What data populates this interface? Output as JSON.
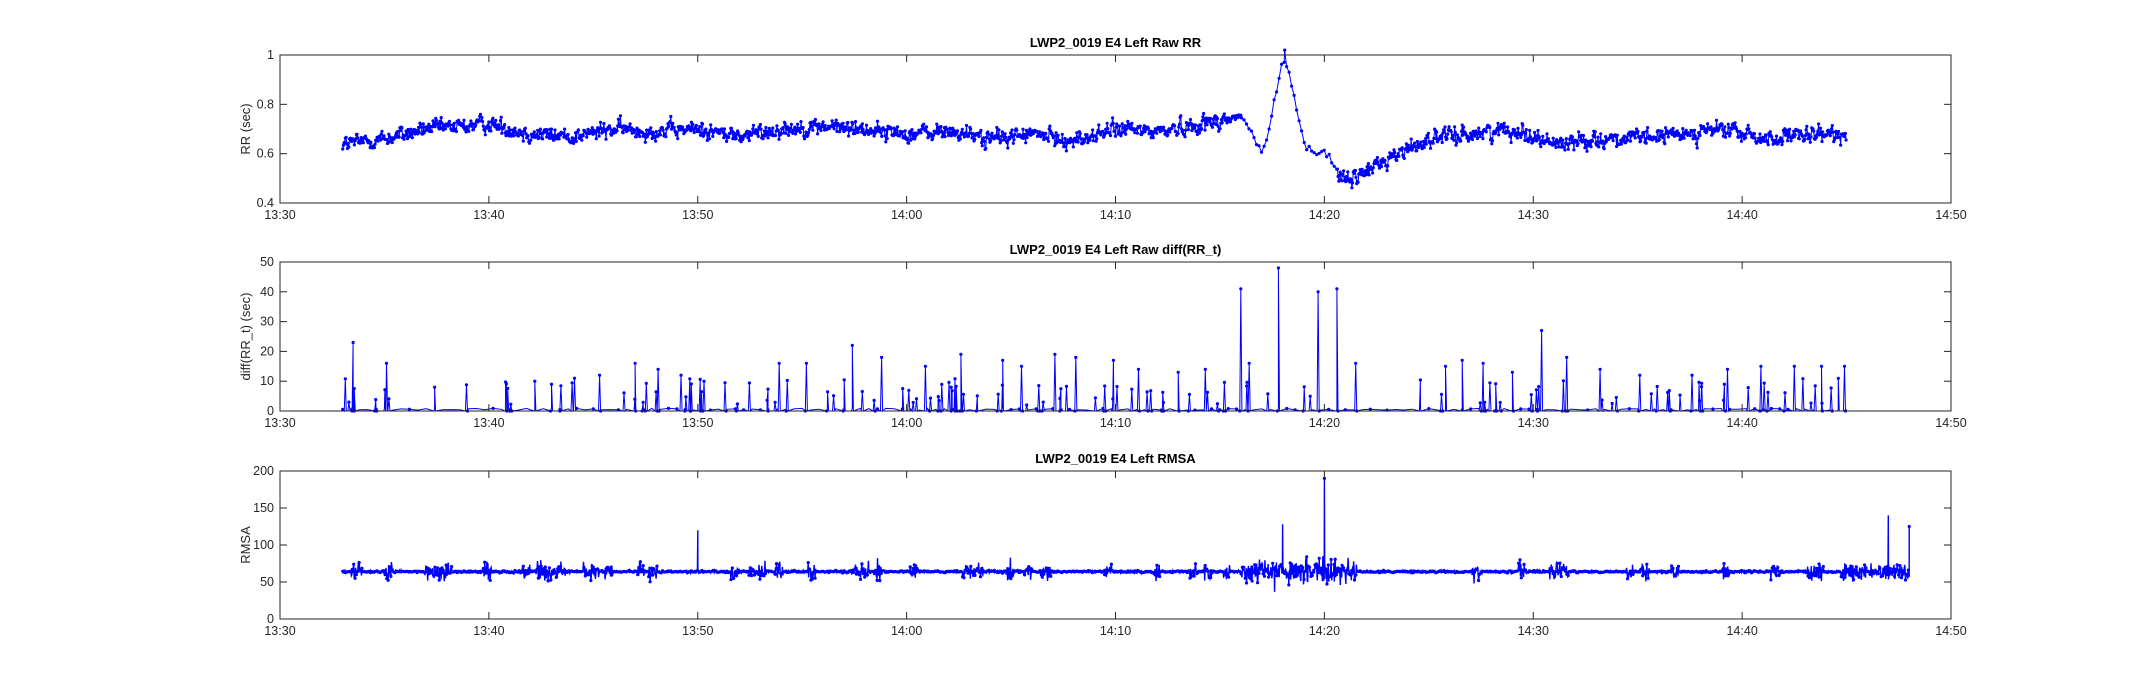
{
  "chart_data": [
    {
      "type": "line",
      "title": "LWP2_0019 E4 Left Raw RR",
      "ylabel": "RR (sec)",
      "xlabel": "",
      "x_ticks": [
        "13:30",
        "13:40",
        "13:50",
        "14:00",
        "14:10",
        "14:20",
        "14:30",
        "14:40",
        "14:50"
      ],
      "y_ticks": [
        "0.4",
        "0.6",
        "0.8",
        "1"
      ],
      "xlim": [
        "13:30",
        "14:50"
      ],
      "ylim": [
        0.4,
        1.0
      ],
      "grid": false,
      "marker": "dot",
      "color": "#0000ff",
      "series": [
        {
          "x": [
            "13:33",
            "13:35",
            "13:37",
            "13:40",
            "13:42",
            "13:44",
            "13:46",
            "13:48",
            "13:50",
            "13:52",
            "13:54",
            "13:56",
            "13:58",
            "14:00",
            "14:02",
            "14:04",
            "14:06",
            "14:08",
            "14:10",
            "14:12",
            "14:14",
            "14:16",
            "14:17",
            "14:18",
            "14:19",
            "14:20",
            "14:21",
            "14:23",
            "14:25",
            "14:27",
            "14:29",
            "14:31",
            "14:33",
            "14:35",
            "14:37",
            "14:39",
            "14:41",
            "14:43",
            "14:45"
          ],
          "values": [
            0.64,
            0.66,
            0.7,
            0.72,
            0.68,
            0.67,
            0.7,
            0.69,
            0.7,
            0.67,
            0.7,
            0.71,
            0.7,
            0.68,
            0.69,
            0.66,
            0.68,
            0.65,
            0.7,
            0.69,
            0.72,
            0.75,
            0.58,
            1.02,
            0.62,
            0.6,
            0.48,
            0.58,
            0.66,
            0.68,
            0.7,
            0.64,
            0.66,
            0.66,
            0.68,
            0.7,
            0.66,
            0.67,
            0.68
          ]
        }
      ]
    },
    {
      "type": "line",
      "title": "LWP2_0019 E4 Left Raw diff(RR_t)",
      "ylabel": "diff(RR_t) (sec)",
      "xlabel": "",
      "x_ticks": [
        "13:30",
        "13:40",
        "13:50",
        "14:00",
        "14:10",
        "14:20",
        "14:30",
        "14:40",
        "14:50"
      ],
      "y_ticks": [
        "0",
        "10",
        "20",
        "30",
        "40",
        "50"
      ],
      "xlim": [
        "13:30",
        "14:50"
      ],
      "ylim": [
        0,
        50
      ],
      "grid": false,
      "marker": "dot",
      "color": "#0000ff",
      "series": [
        {
          "x": [
            "13:33.3",
            "13:33.5",
            "13:35.1",
            "13:37.4",
            "13:42.2",
            "13:43.0",
            "13:44.1",
            "13:45.3",
            "13:47.0",
            "13:48.1",
            "13:49.2",
            "13:50.3",
            "13:53.9",
            "13:55.2",
            "13:57.4",
            "13:58.8",
            "14:00.9",
            "14:02.6",
            "14:04.6",
            "14:05.5",
            "14:07.1",
            "14:08.1",
            "14:09.9",
            "14:11.1",
            "14:13.0",
            "14:14.3",
            "14:16.0",
            "14:16.4",
            "14:17.8",
            "14:19.7",
            "14:20.6",
            "14:21.5",
            "14:25.8",
            "14:26.6",
            "14:27.6",
            "14:29.0",
            "14:30.4",
            "14:31.6",
            "14:33.2",
            "14:35.1",
            "14:37.6",
            "14:39.3",
            "14:40.9",
            "14:42.5",
            "14:43.8",
            "14:44.9"
          ],
          "values": [
            3,
            23,
            16,
            8,
            10,
            9,
            11,
            12,
            16,
            14,
            12,
            10,
            16,
            16,
            22,
            18,
            15,
            19,
            17,
            15,
            19,
            18,
            17,
            14,
            13,
            14,
            41,
            16,
            48,
            40,
            41,
            16,
            15,
            17,
            16,
            13,
            27,
            18,
            14,
            12,
            12,
            14,
            15,
            15,
            15,
            15
          ]
        }
      ]
    },
    {
      "type": "line",
      "title": "LWP2_0019 E4 Left RMSA",
      "ylabel": "RMSA",
      "xlabel": "",
      "x_ticks": [
        "13:30",
        "13:40",
        "13:50",
        "14:00",
        "14:10",
        "14:20",
        "14:30",
        "14:40",
        "14:50"
      ],
      "y_ticks": [
        "0",
        "50",
        "100",
        "150",
        "200"
      ],
      "xlim": [
        "13:30",
        "14:50"
      ],
      "ylim": [
        0,
        200
      ],
      "grid": false,
      "marker": "dot",
      "color": "#0000ff",
      "series": [
        {
          "x": [
            "13:33",
            "13:40",
            "13:45",
            "13:50",
            "13:55",
            "14:00",
            "14:05",
            "14:10",
            "14:15",
            "14:16.5",
            "14:18",
            "14:19",
            "14:20",
            "14:21",
            "14:25",
            "14:30",
            "14:35",
            "14:40",
            "14:45",
            "14:47",
            "14:48"
          ],
          "values": [
            64,
            63,
            64,
            120,
            65,
            66,
            85,
            68,
            65,
            95,
            128,
            100,
            190,
            90,
            70,
            80,
            75,
            72,
            70,
            140,
            125
          ]
        }
      ]
    }
  ]
}
